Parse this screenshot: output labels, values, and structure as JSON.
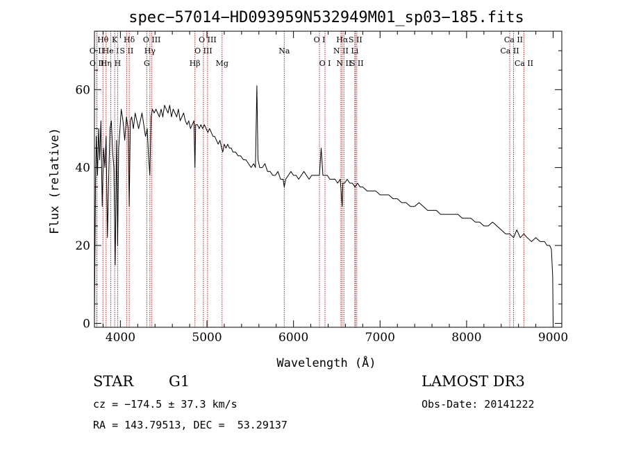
{
  "chart_data": {
    "type": "line",
    "title": "spec−57014−HD093959N532949M01_sp03−185.fits",
    "xlabel": "Wavelength (Å)",
    "ylabel": "Flux (relative)",
    "xlim": [
      3700,
      9100
    ],
    "ylim": [
      -1,
      75
    ],
    "x_ticks": [
      4000,
      5000,
      6000,
      7000,
      8000,
      9000
    ],
    "y_ticks": [
      0,
      20,
      40,
      60
    ],
    "series": [
      {
        "name": "flux",
        "x": [
          3700,
          3712,
          3722,
          3735,
          3748,
          3760,
          3775,
          3790,
          3805,
          3820,
          3835,
          3850,
          3865,
          3880,
          3895,
          3910,
          3925,
          3940,
          3955,
          3968,
          3980,
          3995,
          4010,
          4030,
          4050,
          4070,
          4090,
          4102,
          4115,
          4130,
          4150,
          4170,
          4190,
          4210,
          4230,
          4250,
          4270,
          4290,
          4310,
          4325,
          4340,
          4355,
          4370,
          4390,
          4410,
          4430,
          4450,
          4470,
          4490,
          4510,
          4530,
          4550,
          4570,
          4590,
          4610,
          4630,
          4650,
          4670,
          4690,
          4710,
          4730,
          4750,
          4770,
          4790,
          4810,
          4830,
          4850,
          4861,
          4870,
          4890,
          4910,
          4930,
          4950,
          4970,
          4990,
          5010,
          5030,
          5050,
          5070,
          5090,
          5110,
          5130,
          5150,
          5170,
          5183,
          5200,
          5220,
          5240,
          5260,
          5280,
          5300,
          5330,
          5360,
          5390,
          5420,
          5450,
          5480,
          5510,
          5540,
          5560,
          5577,
          5590,
          5610,
          5640,
          5670,
          5700,
          5730,
          5760,
          5790,
          5820,
          5850,
          5880,
          5893,
          5910,
          5940,
          5970,
          6000,
          6030,
          6060,
          6090,
          6120,
          6150,
          6180,
          6210,
          6240,
          6270,
          6300,
          6320,
          6340,
          6360,
          6390,
          6420,
          6450,
          6480,
          6510,
          6540,
          6563,
          6570,
          6590,
          6620,
          6650,
          6680,
          6710,
          6740,
          6770,
          6800,
          6850,
          6900,
          6950,
          7000,
          7050,
          7100,
          7150,
          7200,
          7250,
          7300,
          7350,
          7400,
          7450,
          7500,
          7550,
          7600,
          7650,
          7700,
          7750,
          7800,
          7850,
          7900,
          7950,
          8000,
          8050,
          8100,
          8150,
          8200,
          8250,
          8300,
          8350,
          8400,
          8450,
          8498,
          8542,
          8580,
          8620,
          8662,
          8700,
          8750,
          8800,
          8850,
          8880,
          8900,
          8930,
          8960,
          8980,
          8995,
          9000
        ],
        "values": [
          2,
          35,
          48,
          38,
          50,
          42,
          52,
          30,
          45,
          40,
          48,
          22,
          38,
          50,
          52,
          44,
          40,
          15,
          47,
          20,
          45,
          50,
          55,
          52,
          47,
          53,
          50,
          30,
          52,
          53,
          50,
          54,
          52,
          50,
          52,
          54,
          51,
          48,
          50,
          43,
          38,
          53,
          55,
          54,
          55,
          54,
          53,
          55,
          53,
          56,
          55,
          54,
          56,
          53,
          55,
          54,
          53,
          55,
          52,
          53,
          54,
          52,
          51,
          52,
          50,
          51,
          52,
          40,
          51,
          51,
          50,
          51,
          50,
          51,
          50,
          49,
          50,
          49,
          48,
          48,
          47,
          46,
          47,
          45,
          44,
          46,
          45,
          46,
          45,
          45,
          44,
          44,
          43,
          43,
          42,
          42,
          41,
          40,
          41,
          40,
          61,
          42,
          40,
          40,
          41,
          39,
          39,
          38,
          38,
          39,
          37,
          37,
          35,
          37,
          38,
          39,
          38,
          38,
          37,
          38,
          39,
          38,
          37,
          38,
          38,
          38,
          38,
          45,
          38,
          38,
          38,
          37,
          37,
          37,
          36,
          37,
          30,
          36,
          36,
          37,
          36,
          36,
          35,
          36,
          35,
          35,
          34,
          34,
          34,
          33,
          33,
          33,
          32,
          32,
          31,
          31,
          30,
          30,
          31,
          30,
          29,
          29,
          29,
          28,
          28,
          28,
          28,
          28,
          27,
          27,
          27,
          26,
          26,
          25,
          25,
          26,
          25,
          24,
          23,
          23,
          22,
          24,
          22,
          23,
          22,
          21,
          22,
          21,
          21,
          21,
          20,
          20,
          19,
          12,
          0
        ]
      }
    ],
    "spectral_lines": [
      {
        "label": "O II",
        "wavelength": 3727,
        "row": 1
      },
      {
        "label": "O II",
        "wavelength": 3729,
        "row": 2
      },
      {
        "label": "Hθ",
        "wavelength": 3798,
        "row": 0
      },
      {
        "label": "He I",
        "wavelength": 3889,
        "row": 1
      },
      {
        "label": "Hη",
        "wavelength": 3835,
        "row": 2
      },
      {
        "label": "K",
        "wavelength": 3934,
        "row": 0
      },
      {
        "label": "H",
        "wavelength": 3968,
        "row": 2
      },
      {
        "label": "S II",
        "wavelength": 4072,
        "row": 1
      },
      {
        "label": "Hδ",
        "wavelength": 4102,
        "row": 0
      },
      {
        "label": "O III",
        "wavelength": 4363,
        "row": 0
      },
      {
        "label": "Hγ",
        "wavelength": 4341,
        "row": 1
      },
      {
        "label": "G",
        "wavelength": 4305,
        "row": 2
      },
      {
        "label": "Hβ",
        "wavelength": 4861,
        "row": 2
      },
      {
        "label": "O III",
        "wavelength": 5007,
        "row": 0
      },
      {
        "label": "O III",
        "wavelength": 4959,
        "row": 1
      },
      {
        "label": "Mg",
        "wavelength": 5175,
        "row": 2
      },
      {
        "label": "Na",
        "wavelength": 5893,
        "row": 1
      },
      {
        "label": "O I",
        "wavelength": 6300,
        "row": 0
      },
      {
        "label": "O I",
        "wavelength": 6364,
        "row": 2
      },
      {
        "label": "Hα",
        "wavelength": 6563,
        "row": 0
      },
      {
        "label": "N II",
        "wavelength": 6548,
        "row": 1
      },
      {
        "label": "N II",
        "wavelength": 6583,
        "row": 2
      },
      {
        "label": "S II",
        "wavelength": 6716,
        "row": 0
      },
      {
        "label": "Li",
        "wavelength": 6708,
        "row": 1
      },
      {
        "label": "S II",
        "wavelength": 6731,
        "row": 2
      },
      {
        "label": "Ca II",
        "wavelength": 8542,
        "row": 0
      },
      {
        "label": "Ca II",
        "wavelength": 8498,
        "row": 1
      },
      {
        "label": "Ca II",
        "wavelength": 8662,
        "row": 2
      }
    ]
  },
  "info": {
    "object_class": "STAR",
    "subclass": "G1",
    "survey": "LAMOST DR3",
    "redshift": "cz = −174.5 ± 37.3 km/s",
    "obs_date": "Obs-Date: 20141222",
    "coords": "RA = 143.79513, DEC =  53.29137"
  },
  "colors": {
    "spectrum": "#000000",
    "lines": "#b22222",
    "axes": "#000000"
  }
}
